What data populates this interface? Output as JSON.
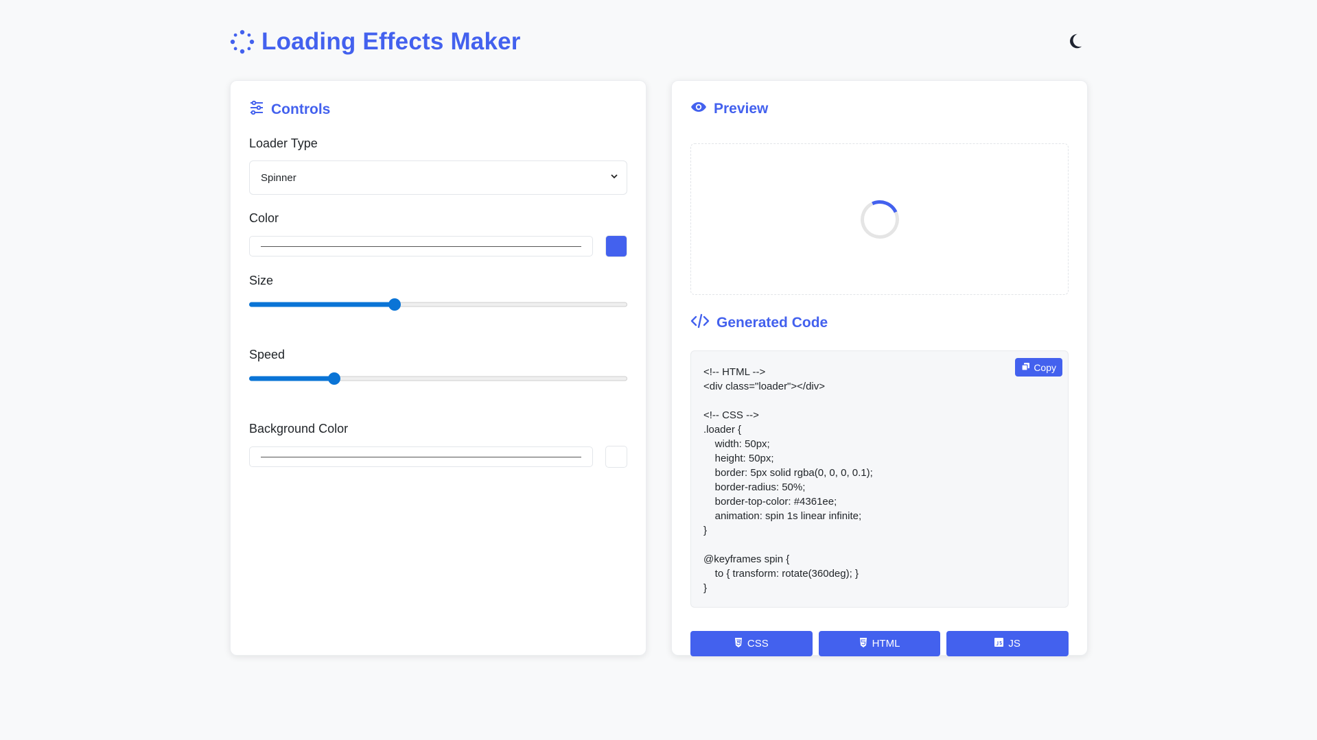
{
  "app": {
    "title": "Loading Effects Maker",
    "accent_color": "#4361ee",
    "theme_icon": "moon-icon"
  },
  "controls": {
    "title": "Controls",
    "loader_type": {
      "label": "Loader Type",
      "value": "Spinner"
    },
    "color": {
      "label": "Color",
      "swatch": "#4361ee"
    },
    "size": {
      "label": "Size",
      "fraction": 0.385
    },
    "speed": {
      "label": "Speed",
      "fraction": 0.225
    },
    "background_color": {
      "label": "Background Color",
      "swatch": "#ffffff"
    }
  },
  "preview": {
    "title": "Preview"
  },
  "code": {
    "title": "Generated Code",
    "copy_label": "Copy",
    "text": "<!-- HTML -->\n<div class=\"loader\"></div>\n\n<!-- CSS -->\n.loader {\n    width: 50px;\n    height: 50px;\n    border: 5px solid rgba(0, 0, 0, 0.1);\n    border-radius: 50%;\n    border-top-color: #4361ee;\n    animation: spin 1s linear infinite;\n}\n\n@keyframes spin {\n    to { transform: rotate(360deg); }\n}"
  },
  "tabs": {
    "css": "CSS",
    "html": "HTML",
    "js": "JS"
  }
}
